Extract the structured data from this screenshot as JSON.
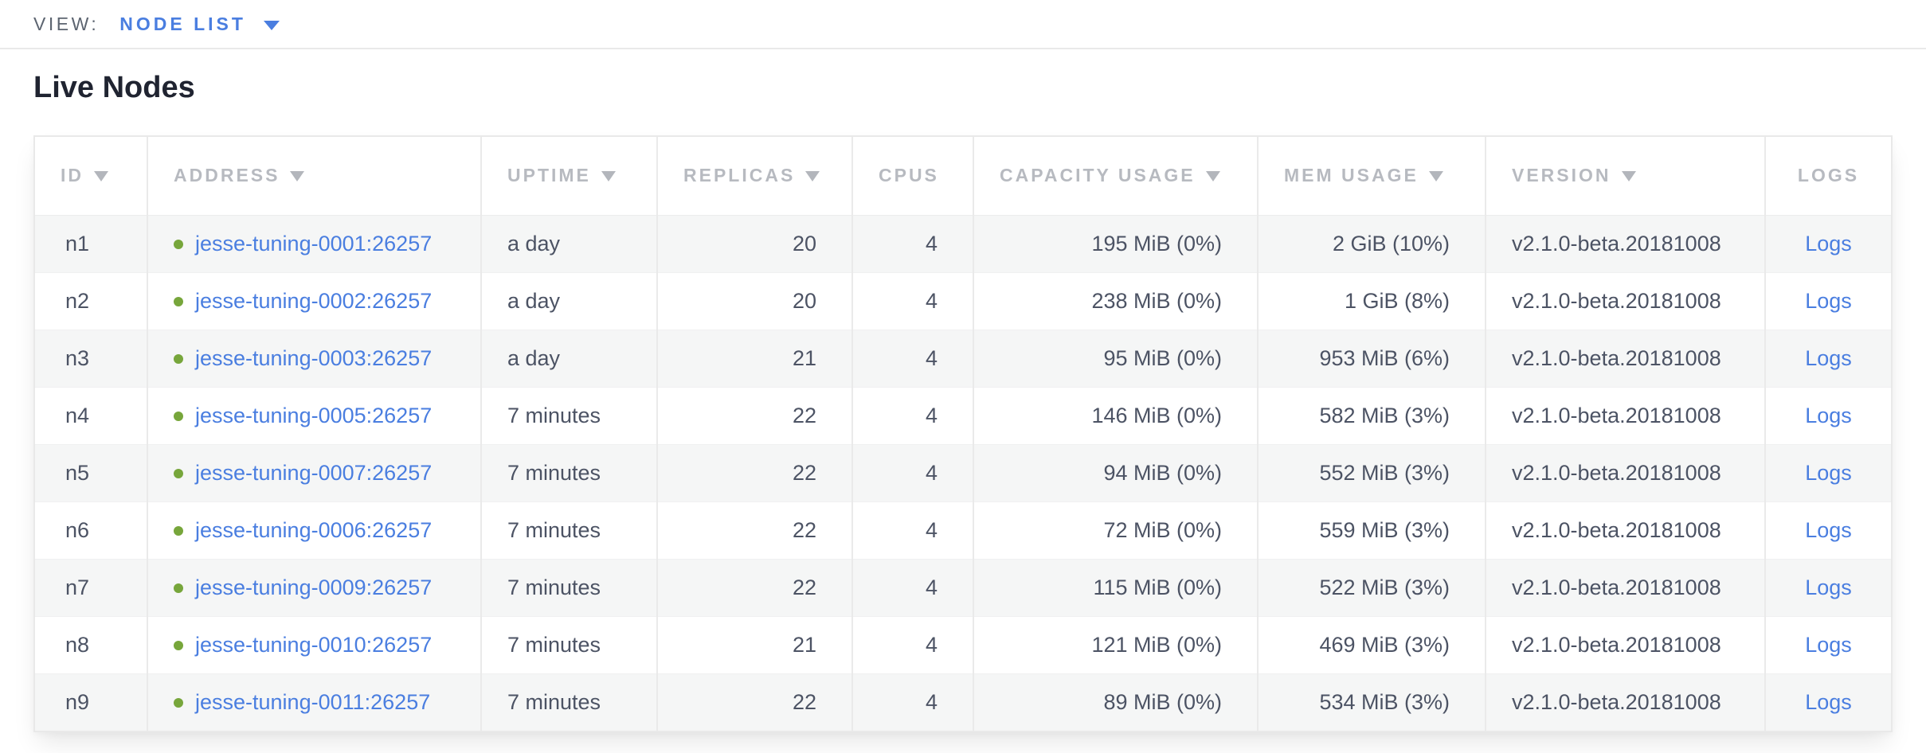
{
  "view_bar": {
    "label": "VIEW:",
    "selected": "NODE LIST"
  },
  "page": {
    "title": "Live Nodes"
  },
  "table": {
    "columns": [
      {
        "key": "id",
        "label": "ID",
        "sortable": true,
        "align": "left"
      },
      {
        "key": "address",
        "label": "ADDRESS",
        "sortable": true,
        "align": "left"
      },
      {
        "key": "uptime",
        "label": "UPTIME",
        "sortable": true,
        "align": "left"
      },
      {
        "key": "replicas",
        "label": "REPLICAS",
        "sortable": true,
        "align": "right"
      },
      {
        "key": "cpus",
        "label": "CPUS",
        "sortable": false,
        "align": "right"
      },
      {
        "key": "capacity",
        "label": "CAPACITY USAGE",
        "sortable": true,
        "align": "right"
      },
      {
        "key": "mem",
        "label": "MEM USAGE",
        "sortable": true,
        "align": "right"
      },
      {
        "key": "version",
        "label": "VERSION",
        "sortable": true,
        "align": "left"
      },
      {
        "key": "logs",
        "label": "LOGS",
        "sortable": false,
        "align": "center"
      }
    ],
    "rows": [
      {
        "id": "n1",
        "status": "live",
        "address": "jesse-tuning-0001:26257",
        "uptime": "a day",
        "replicas": "20",
        "cpus": "4",
        "capacity": "195 MiB (0%)",
        "mem": "2 GiB (10%)",
        "version": "v2.1.0-beta.20181008",
        "logs": "Logs"
      },
      {
        "id": "n2",
        "status": "live",
        "address": "jesse-tuning-0002:26257",
        "uptime": "a day",
        "replicas": "20",
        "cpus": "4",
        "capacity": "238 MiB (0%)",
        "mem": "1 GiB (8%)",
        "version": "v2.1.0-beta.20181008",
        "logs": "Logs"
      },
      {
        "id": "n3",
        "status": "live",
        "address": "jesse-tuning-0003:26257",
        "uptime": "a day",
        "replicas": "21",
        "cpus": "4",
        "capacity": "95 MiB (0%)",
        "mem": "953 MiB (6%)",
        "version": "v2.1.0-beta.20181008",
        "logs": "Logs"
      },
      {
        "id": "n4",
        "status": "live",
        "address": "jesse-tuning-0005:26257",
        "uptime": "7 minutes",
        "replicas": "22",
        "cpus": "4",
        "capacity": "146 MiB (0%)",
        "mem": "582 MiB (3%)",
        "version": "v2.1.0-beta.20181008",
        "logs": "Logs"
      },
      {
        "id": "n5",
        "status": "live",
        "address": "jesse-tuning-0007:26257",
        "uptime": "7 minutes",
        "replicas": "22",
        "cpus": "4",
        "capacity": "94 MiB (0%)",
        "mem": "552 MiB (3%)",
        "version": "v2.1.0-beta.20181008",
        "logs": "Logs"
      },
      {
        "id": "n6",
        "status": "live",
        "address": "jesse-tuning-0006:26257",
        "uptime": "7 minutes",
        "replicas": "22",
        "cpus": "4",
        "capacity": "72 MiB (0%)",
        "mem": "559 MiB (3%)",
        "version": "v2.1.0-beta.20181008",
        "logs": "Logs"
      },
      {
        "id": "n7",
        "status": "live",
        "address": "jesse-tuning-0009:26257",
        "uptime": "7 minutes",
        "replicas": "22",
        "cpus": "4",
        "capacity": "115 MiB (0%)",
        "mem": "522 MiB (3%)",
        "version": "v2.1.0-beta.20181008",
        "logs": "Logs"
      },
      {
        "id": "n8",
        "status": "live",
        "address": "jesse-tuning-0010:26257",
        "uptime": "7 minutes",
        "replicas": "21",
        "cpus": "4",
        "capacity": "121 MiB (0%)",
        "mem": "469 MiB (3%)",
        "version": "v2.1.0-beta.20181008",
        "logs": "Logs"
      },
      {
        "id": "n9",
        "status": "live",
        "address": "jesse-tuning-0011:26257",
        "uptime": "7 minutes",
        "replicas": "22",
        "cpus": "4",
        "capacity": "89 MiB (0%)",
        "mem": "534 MiB (3%)",
        "version": "v2.1.0-beta.20181008",
        "logs": "Logs"
      }
    ]
  },
  "colors": {
    "link_blue": "#4a7ee0",
    "live_dot_green": "#77a63b",
    "header_gray": "#b7bac0",
    "cell_text": "#4c5364",
    "row_stripe": "#f5f6f6"
  }
}
